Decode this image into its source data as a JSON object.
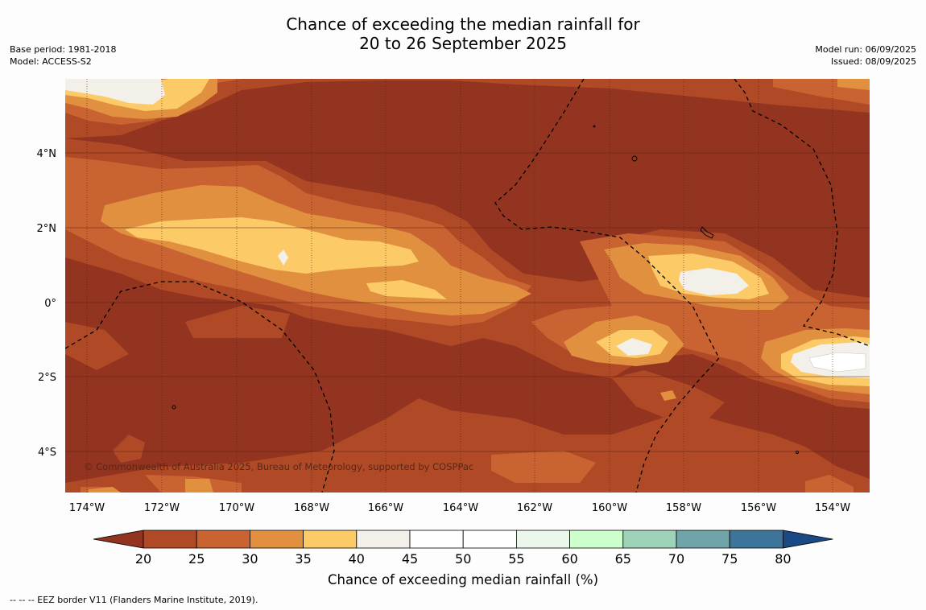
{
  "title_line1": "Chance of exceeding the median rainfall for",
  "title_line2": "20 to 26 September 2025",
  "base_period": "Base period: 1981-2018",
  "model": "Model: ACCESS-S2",
  "model_run": "Model run: 06/09/2025",
  "issued": "Issued: 08/09/2025",
  "copyright": "© Commonwealth of Australia 2025, Bureau of Meteorology, supported by COSPPac",
  "lon_labels": [
    "174°W",
    "172°W",
    "170°W",
    "168°W",
    "166°W",
    "164°W",
    "162°W",
    "160°W",
    "158°W",
    "156°W",
    "154°W"
  ],
  "lat_labels": [
    "4°N",
    "2°N",
    "0°",
    "2°S",
    "4°S"
  ],
  "colorbar": {
    "label": "Chance of exceeding median rainfall (%)",
    "ticks": [
      "20",
      "25",
      "30",
      "35",
      "40",
      "45",
      "50",
      "55",
      "60",
      "65",
      "70",
      "75",
      "80"
    ],
    "colors": [
      "#933420",
      "#b04a26",
      "#c96432",
      "#e0903f",
      "#fdca68",
      "#f3efe9",
      "#ffffff",
      "#ffffff",
      "#ebf7eb",
      "#cdffcd",
      "#9ed2b9",
      "#6fa5a8",
      "#3c7599",
      "#1a4a86"
    ]
  },
  "legend_note": "--  --  -- EEZ border V11 (Flanders Marine Institute, 2019)."
}
